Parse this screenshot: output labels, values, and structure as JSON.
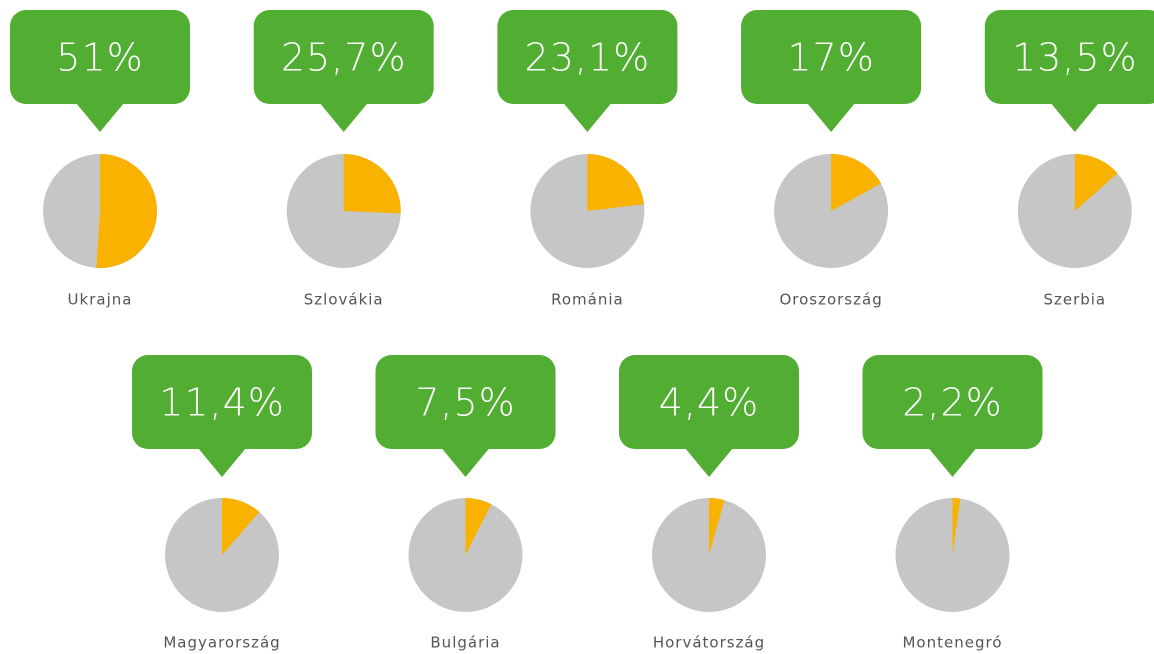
{
  "chart_data": {
    "type": "pie",
    "categories": [
      "Ukrajna",
      "Szlovákia",
      "Románia",
      "Oroszország",
      "Szerbia",
      "Magyarország",
      "Bulgária",
      "Horvátország",
      "Montenegró"
    ],
    "values": [
      51,
      25.7,
      23.1,
      17,
      13.5,
      11.4,
      7.5,
      4.4,
      2.2
    ],
    "value_labels": [
      "51%",
      "25,7%",
      "23,1%",
      "17%",
      "13,5%",
      "11,4%",
      "7,5%",
      "4,4%",
      "2,2%"
    ],
    "color": "#f9b200",
    "rest_color": "#c6c6c6",
    "callout_color": "#52ae32"
  }
}
